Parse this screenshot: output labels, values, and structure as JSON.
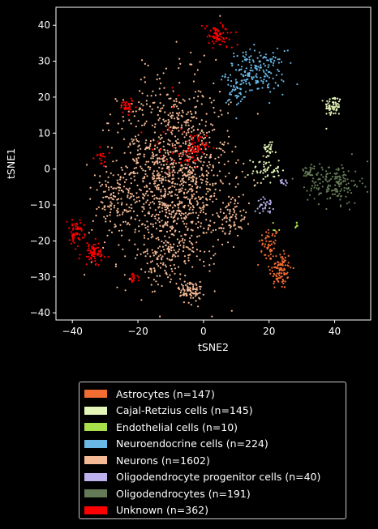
{
  "chart_data": {
    "type": "scatter",
    "title": "",
    "xlabel": "tSNE2",
    "ylabel": "tSNE1",
    "xlim": [
      -45,
      51
    ],
    "ylim": [
      -42,
      45
    ],
    "xticks": [
      "−40",
      "−20",
      "0",
      "20",
      "40"
    ],
    "xtick_values": [
      -40,
      -20,
      0,
      20,
      40
    ],
    "yticks": [
      "−40",
      "−30",
      "−20",
      "−10",
      "0",
      "10",
      "20",
      "30",
      "40"
    ],
    "ytick_values": [
      -40,
      -30,
      -20,
      -10,
      0,
      10,
      20,
      30,
      40
    ],
    "grid": false,
    "legend_position": "below",
    "background": "#000000",
    "series": [
      {
        "name": "Astrocytes (n=147)",
        "color": "#f36c32",
        "n": 147,
        "clusters": [
          {
            "x": 20,
            "y": -21,
            "sx": 1.6,
            "sy": 2.4,
            "w": 0.35
          },
          {
            "x": 23.5,
            "y": -28,
            "sx": 1.7,
            "sy": 2.8,
            "w": 0.65
          }
        ]
      },
      {
        "name": "Cajal-Retzius cells (n=145)",
        "color": "#e4f5b8",
        "n": 145,
        "clusters": [
          {
            "x": 39.5,
            "y": 17.5,
            "sx": 1.3,
            "sy": 1.5,
            "w": 0.45
          },
          {
            "x": 19,
            "y": 0,
            "sx": 2.2,
            "sy": 2.0,
            "w": 0.4
          },
          {
            "x": 20,
            "y": 6,
            "sx": 0.6,
            "sy": 1.5,
            "w": 0.15
          }
        ]
      },
      {
        "name": "Endothelial cells (n=10)",
        "color": "#a8e04c",
        "n": 10,
        "clusters": [
          {
            "x": 28.5,
            "y": -16,
            "sx": 0.4,
            "sy": 0.6,
            "w": 0.6
          },
          {
            "x": 21,
            "y": -17,
            "sx": 1.0,
            "sy": 1.0,
            "w": 0.4
          }
        ]
      },
      {
        "name": "Neuroendocrine cells (n=224)",
        "color": "#6ab8e6",
        "n": 224,
        "clusters": [
          {
            "x": 16,
            "y": 27,
            "sx": 4.5,
            "sy": 3.0,
            "w": 0.85
          },
          {
            "x": 10,
            "y": 21,
            "sx": 1.5,
            "sy": 2.5,
            "w": 0.15
          }
        ]
      },
      {
        "name": "Neurons (n=1602)",
        "color": "#f4b995",
        "n": 1602,
        "clusters": [
          {
            "x": -9,
            "y": -2,
            "sx": 8.5,
            "sy": 13,
            "w": 0.8
          },
          {
            "x": -4,
            "y": -34,
            "sx": 1.8,
            "sy": 1.6,
            "w": 0.05
          },
          {
            "x": -12,
            "y": -25,
            "sx": 3.0,
            "sy": 3.5,
            "w": 0.05
          },
          {
            "x": 9,
            "y": -13,
            "sx": 2.0,
            "sy": 3.0,
            "w": 0.04
          },
          {
            "x": -28,
            "y": -10,
            "sx": 4.0,
            "sy": 4.5,
            "w": 0.06
          }
        ]
      },
      {
        "name": "Oligodendrocyte progenitor cells (n=40)",
        "color": "#bdb1ee",
        "n": 40,
        "clusters": [
          {
            "x": 19,
            "y": -10,
            "sx": 1.2,
            "sy": 1.0,
            "w": 0.75
          },
          {
            "x": 25,
            "y": -3.5,
            "sx": 1.0,
            "sy": 0.6,
            "w": 0.25
          }
        ]
      },
      {
        "name": "Oligodendrocytes (n=191)",
        "color": "#647a56",
        "n": 191,
        "clusters": [
          {
            "x": 40,
            "y": -4,
            "sx": 4.0,
            "sy": 2.8,
            "w": 0.85
          },
          {
            "x": 32,
            "y": -1,
            "sx": 1.3,
            "sy": 0.8,
            "w": 0.15
          }
        ]
      },
      {
        "name": "Unknown (n=362)",
        "color": "#ff0000",
        "n": 362,
        "clusters": [
          {
            "x": 4.5,
            "y": 37,
            "sx": 2.3,
            "sy": 1.8,
            "w": 0.2
          },
          {
            "x": -3,
            "y": 5.5,
            "sx": 2.0,
            "sy": 2.0,
            "w": 0.2
          },
          {
            "x": -23,
            "y": 17.5,
            "sx": 1.5,
            "sy": 1.0,
            "w": 0.1
          },
          {
            "x": -31,
            "y": 3.5,
            "sx": 1.0,
            "sy": 1.3,
            "w": 0.05
          },
          {
            "x": -39,
            "y": -17.5,
            "sx": 1.3,
            "sy": 1.6,
            "w": 0.15
          },
          {
            "x": -33.5,
            "y": -23.5,
            "sx": 2.0,
            "sy": 1.6,
            "w": 0.2
          },
          {
            "x": -21.5,
            "y": -30.5,
            "sx": 0.7,
            "sy": 0.7,
            "w": 0.05
          },
          {
            "x": -8,
            "y": 10,
            "sx": 5.0,
            "sy": 8.0,
            "w": 0.05
          }
        ]
      }
    ]
  }
}
